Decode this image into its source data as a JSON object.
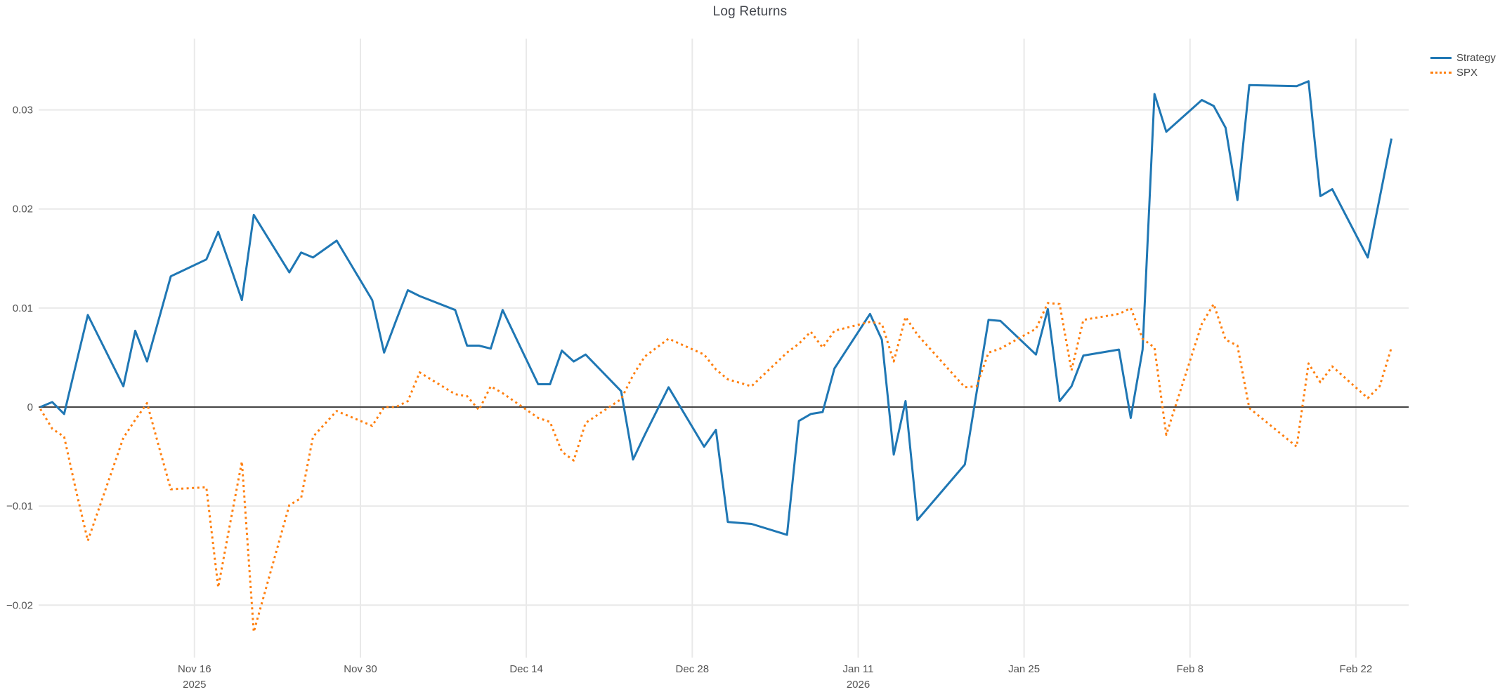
{
  "chart_data": {
    "type": "line",
    "title": "Log Returns",
    "xlabel": "",
    "ylabel": "",
    "grid": true,
    "background_color": "#ffffff",
    "grid_color": "#e9e9e9",
    "zero_line_color": "#444444",
    "text_color": "#545454",
    "legend_position": "top-right-outside",
    "xlim_days": [
      -0.15,
      115.45
    ],
    "ylim": [
      -0.0248,
      0.0372
    ],
    "y_ticks": [
      {
        "value": 0.03,
        "label": "0.03"
      },
      {
        "value": 0.02,
        "label": "0.02"
      },
      {
        "value": 0.01,
        "label": "0.01"
      },
      {
        "value": 0,
        "label": "0"
      },
      {
        "value": -0.01,
        "label": "−0.01"
      },
      {
        "value": -0.02,
        "label": "−0.02"
      }
    ],
    "x_ticks": [
      {
        "day": 13,
        "label": "Nov 16",
        "sublabel": "2025"
      },
      {
        "day": 27,
        "label": "Nov 30"
      },
      {
        "day": 41,
        "label": "Dec 14"
      },
      {
        "day": 55,
        "label": "Dec 28"
      },
      {
        "day": 69,
        "label": "Jan 11",
        "sublabel": "2026"
      },
      {
        "day": 83,
        "label": "Jan 25"
      },
      {
        "day": 97,
        "label": "Feb 8"
      },
      {
        "day": 111,
        "label": "Feb 22"
      }
    ],
    "dates": [
      "Nov 3",
      "Nov 4",
      "Nov 5",
      "Nov 6",
      "Nov 7",
      "Nov 10",
      "Nov 11",
      "Nov 12",
      "Nov 13",
      "Nov 14",
      "Nov 17",
      "Nov 18",
      "Nov 19",
      "Nov 20",
      "Nov 21",
      "Nov 24",
      "Nov 25",
      "Nov 26",
      "Nov 28",
      "Dec 1",
      "Dec 2",
      "Dec 3",
      "Dec 4",
      "Dec 5",
      "Dec 8",
      "Dec 9",
      "Dec 10",
      "Dec 11",
      "Dec 12",
      "Dec 15",
      "Dec 16",
      "Dec 17",
      "Dec 18",
      "Dec 19",
      "Dec 22",
      "Dec 23",
      "Dec 24",
      "Dec 26",
      "Dec 29",
      "Dec 30",
      "Dec 31",
      "Jan 2",
      "Jan 5",
      "Jan 6",
      "Jan 7",
      "Jan 8",
      "Jan 9",
      "Jan 12",
      "Jan 13",
      "Jan 14",
      "Jan 15",
      "Jan 16",
      "Jan 20",
      "Jan 21",
      "Jan 22",
      "Jan 23",
      "Jan 26",
      "Jan 27",
      "Jan 28",
      "Jan 29",
      "Jan 30",
      "Feb 2",
      "Feb 3",
      "Feb 4",
      "Feb 5",
      "Feb 6",
      "Feb 9",
      "Feb 10",
      "Feb 11",
      "Feb 12",
      "Feb 13",
      "Feb 17",
      "Feb 18",
      "Feb 19",
      "Feb 20",
      "Feb 23",
      "Feb 24",
      "Feb 25"
    ],
    "days": [
      0,
      1,
      2,
      3,
      4,
      7,
      8,
      9,
      10,
      11,
      14,
      15,
      16,
      17,
      18,
      21,
      22,
      23,
      25,
      28,
      29,
      30,
      31,
      32,
      35,
      36,
      37,
      38,
      39,
      42,
      43,
      44,
      45,
      46,
      49,
      50,
      51,
      53,
      56,
      57,
      58,
      60,
      63,
      64,
      65,
      66,
      67,
      70,
      71,
      72,
      73,
      74,
      78,
      79,
      80,
      81,
      84,
      85,
      86,
      87,
      88,
      91,
      92,
      93,
      94,
      95,
      98,
      99,
      100,
      101,
      102,
      106,
      107,
      108,
      109,
      112,
      113,
      114
    ],
    "series": [
      {
        "name": "Strategy",
        "color": "#1f77b4",
        "dash": "solid",
        "values": [
          0.0,
          0.0005,
          -0.0007,
          0.0043,
          0.0093,
          0.0021,
          0.0077,
          0.0046,
          0.0089,
          0.0132,
          0.0149,
          0.0177,
          0.0143,
          0.0108,
          0.0194,
          0.0136,
          0.0156,
          0.0151,
          0.0168,
          0.0108,
          0.0055,
          0.0087,
          0.0118,
          0.0112,
          0.0098,
          0.0062,
          0.0062,
          0.0059,
          0.0098,
          0.0023,
          0.0023,
          0.0057,
          0.0046,
          0.0053,
          0.0016,
          -0.0053,
          -0.0028,
          0.002,
          -0.004,
          -0.0023,
          -0.0116,
          -0.0118,
          -0.0129,
          -0.0014,
          -0.0007,
          -0.0005,
          0.0039,
          0.0094,
          0.0068,
          -0.0048,
          0.0006,
          -0.0114,
          -0.0058,
          0.0015,
          0.0088,
          0.0087,
          0.0053,
          0.0099,
          0.0006,
          0.0021,
          0.0052,
          0.0058,
          -0.0011,
          0.0058,
          0.0316,
          0.0278,
          0.031,
          0.0304,
          0.0282,
          0.0209,
          0.0325,
          0.0324,
          0.0329,
          0.0213,
          0.022,
          0.0151,
          0.0211,
          0.0271
        ]
      },
      {
        "name": "SPX",
        "color": "#ff7f0e",
        "dash": "dot",
        "values": [
          -0.0002,
          -0.0022,
          -0.003,
          -0.0084,
          -0.0135,
          -0.0031,
          -0.0013,
          0.0004,
          -0.004,
          -0.0083,
          -0.0081,
          -0.0182,
          -0.0118,
          -0.0055,
          -0.0227,
          -0.0099,
          -0.0092,
          -0.003,
          -0.0004,
          -0.0019,
          0.0,
          0.0,
          0.0006,
          0.0035,
          0.0013,
          0.0011,
          -0.0003,
          0.0021,
          0.0014,
          -0.0011,
          -0.0015,
          -0.0045,
          -0.0054,
          -0.0016,
          0.0008,
          0.0032,
          0.0051,
          0.0069,
          0.0053,
          0.0038,
          0.0028,
          0.0021,
          0.0055,
          0.0064,
          0.0076,
          0.006,
          0.0077,
          0.0086,
          0.0084,
          0.0046,
          0.0091,
          0.0073,
          0.002,
          0.0021,
          0.0055,
          0.0059,
          0.0079,
          0.0105,
          0.0104,
          0.0037,
          0.0088,
          0.0094,
          0.01,
          0.0069,
          0.006,
          -0.0028,
          0.0084,
          0.0104,
          0.0068,
          0.0062,
          -0.0001,
          -0.004,
          0.0044,
          0.0025,
          0.0041,
          0.0009,
          0.0021,
          0.006
        ]
      }
    ]
  }
}
